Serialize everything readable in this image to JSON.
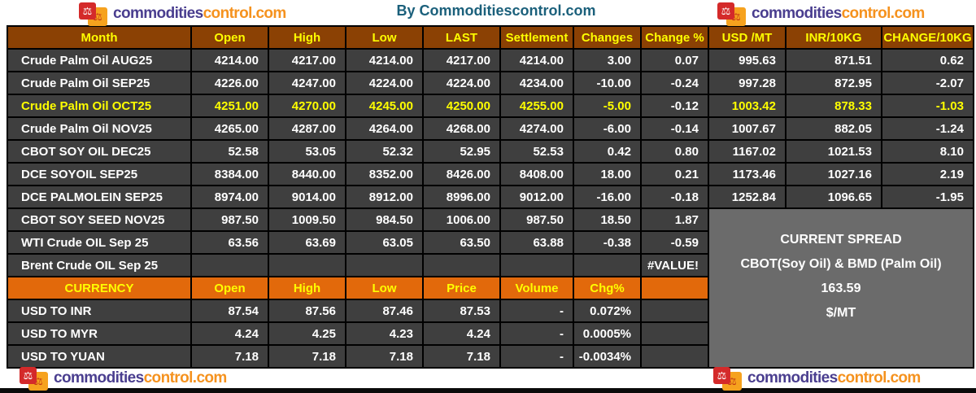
{
  "page": {
    "title": "By Commoditiescontrol.com",
    "brand": {
      "name_left": "commodities",
      "name_right": "control.com",
      "icon_glyph": "⚖"
    }
  },
  "colors": {
    "header_bg": "#8B4104",
    "currency_bg": "#E2690B",
    "row_bg": "#3F3F3F",
    "spread_bg": "#6B6B6B",
    "yellow": "#FFFF00",
    "title_color": "#1B607B",
    "brand_purple": "#4A3E8F",
    "brand_orange": "#F5921E",
    "logo_red": "#D42A2A",
    "logo_orange": "#F6A21E"
  },
  "table": {
    "headers": [
      "Month",
      "Open",
      "High",
      "Low",
      "LAST",
      "Settlement",
      "Changes",
      "Change %",
      "USD /MT",
      "INR/10KG",
      "CHANGE/10KG"
    ],
    "rows": [
      {
        "month": "Crude Palm Oil AUG25",
        "values": [
          "4214.00",
          "4217.00",
          "4214.00",
          "4217.00",
          "4214.00",
          "3.00",
          "0.07",
          "995.63",
          "871.51",
          "0.62"
        ]
      },
      {
        "month": "Crude Palm Oil SEP25",
        "values": [
          "4226.00",
          "4247.00",
          "4224.00",
          "4224.00",
          "4234.00",
          "-10.00",
          "-0.24",
          "997.28",
          "872.95",
          "-2.07"
        ]
      },
      {
        "month": "Crude Palm Oil OCT25",
        "values": [
          "4251.00",
          "4270.00",
          "4245.00",
          "4250.00",
          "4255.00",
          "-5.00",
          "-0.12",
          "1003.42",
          "878.33",
          "-1.03"
        ],
        "highlight": true,
        "white_value_indexes": [
          6
        ]
      },
      {
        "month": "Crude Palm Oil NOV25",
        "values": [
          "4265.00",
          "4287.00",
          "4264.00",
          "4268.00",
          "4274.00",
          "-6.00",
          "-0.14",
          "1007.67",
          "882.05",
          "-1.24"
        ]
      },
      {
        "month": "CBOT SOY OIL DEC25",
        "values": [
          "52.58",
          "53.05",
          "52.32",
          "52.95",
          "52.53",
          "0.42",
          "0.80",
          "1167.02",
          "1021.53",
          "8.10"
        ]
      },
      {
        "month": "DCE SOYOIL SEP25",
        "values": [
          "8384.00",
          "8440.00",
          "8352.00",
          "8426.00",
          "8408.00",
          "18.00",
          "0.21",
          "1173.46",
          "1027.16",
          "2.19"
        ]
      },
      {
        "month": "DCE PALMOLEIN SEP25",
        "values": [
          "8974.00",
          "9014.00",
          "8912.00",
          "8996.00",
          "9012.00",
          "-16.00",
          "-0.18",
          "1252.84",
          "1096.65",
          "-1.95"
        ]
      },
      {
        "month": "CBOT SOY SEED NOV25",
        "values": [
          "987.50",
          "1009.50",
          "984.50",
          "1006.00",
          "987.50",
          "18.50",
          "1.87"
        ]
      },
      {
        "month": "WTI Crude OIL Sep 25",
        "values": [
          "63.56",
          "63.69",
          "63.05",
          "63.50",
          "63.88",
          "-0.38",
          "-0.59"
        ]
      },
      {
        "month": "Brent Crude OIL Sep 25",
        "values": [
          "",
          "",
          "",
          "",
          "",
          "",
          "#VALUE!"
        ]
      }
    ]
  },
  "currency": {
    "headers": [
      "CURRENCY",
      "Open",
      "High",
      "Low",
      "Price",
      "Volume",
      "Chg%",
      ""
    ],
    "rows": [
      {
        "label": "USD TO INR",
        "values": [
          "87.54",
          "87.56",
          "87.46",
          "87.53",
          "-",
          "0.072%"
        ]
      },
      {
        "label": "USD TO MYR",
        "values": [
          "4.24",
          "4.25",
          "4.23",
          "4.24",
          "-",
          "0.0005%"
        ]
      },
      {
        "label": "USD TO YUAN",
        "values": [
          "7.18",
          "7.18",
          "7.18",
          "7.18",
          "-",
          "-0.0034%"
        ]
      }
    ]
  },
  "spread": {
    "line1": "CURRENT SPREAD",
    "line2": "CBOT(Soy Oil) & BMD (Palm Oil)",
    "line3": "163.59",
    "line4": "$/MT"
  }
}
